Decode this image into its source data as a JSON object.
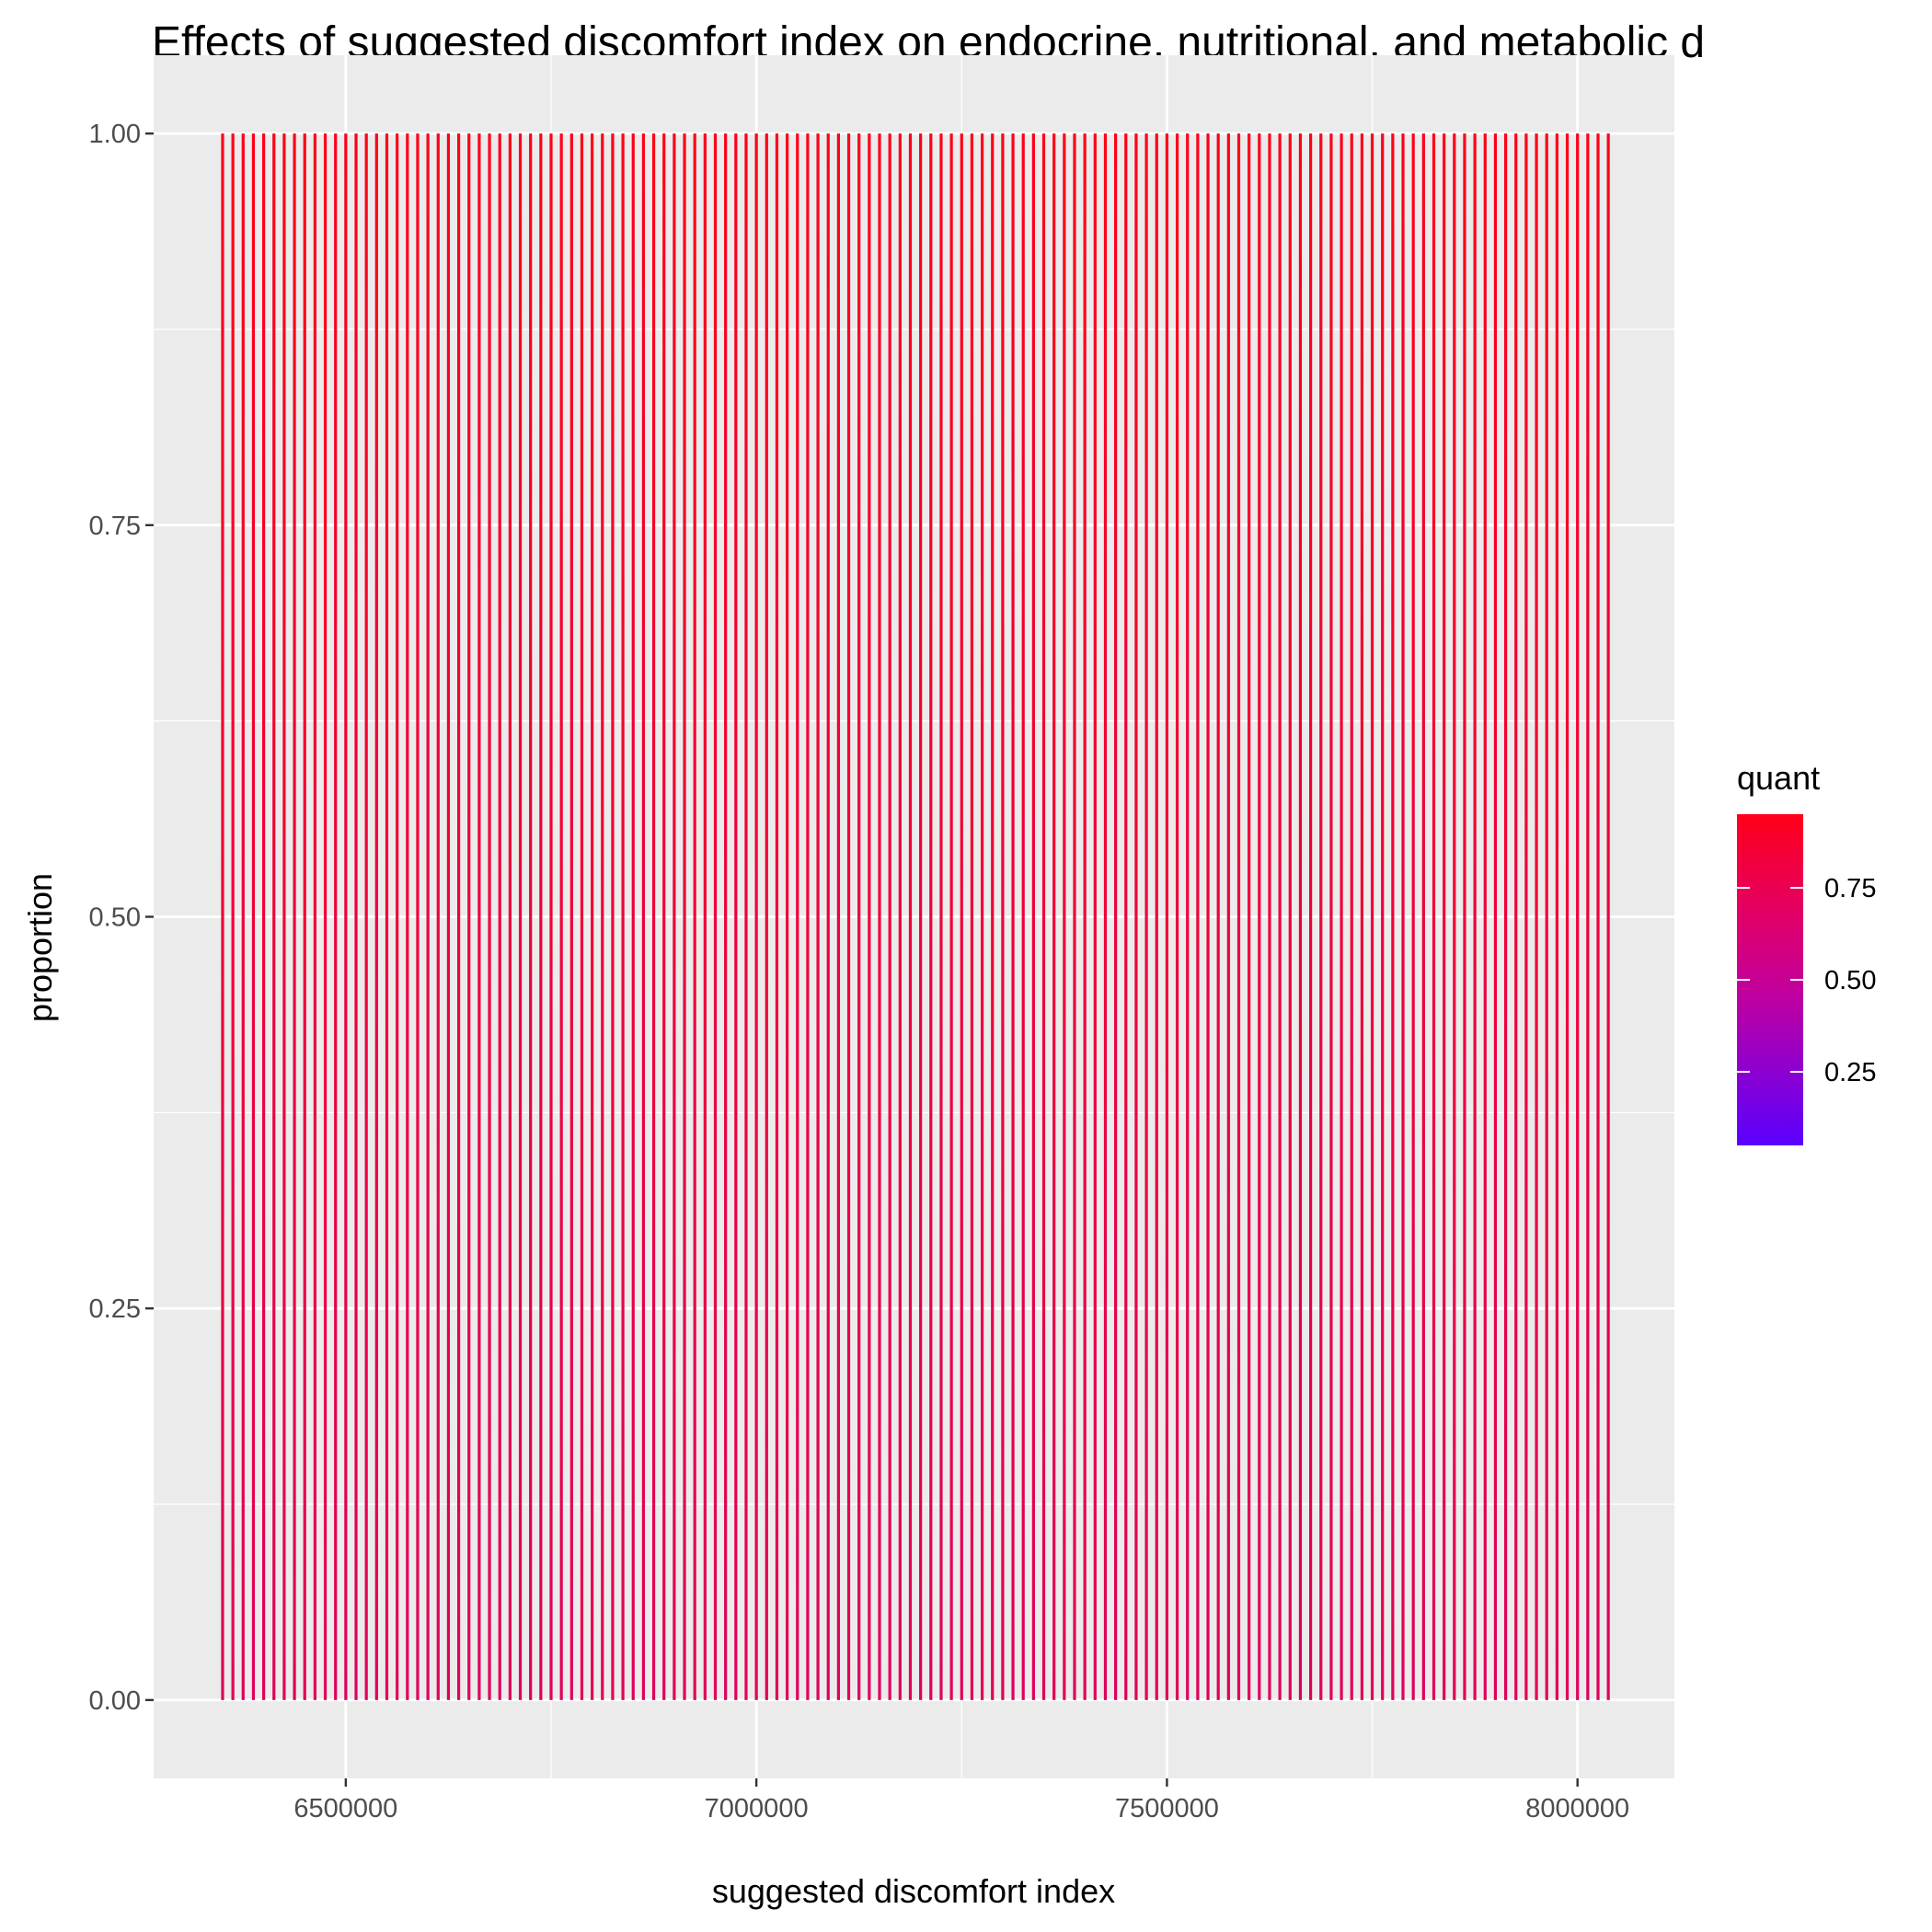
{
  "chart_data": {
    "type": "line",
    "title": "Effects of suggested discomfort index on endocrine, nutritional, and metabolic d",
    "xlabel": "suggested discomfort index",
    "ylabel": "proportion",
    "xlim": [
      6266000,
      8118000
    ],
    "ylim": [
      -0.05,
      1.05
    ],
    "x_ticks": [
      6500000,
      7000000,
      7500000,
      8000000
    ],
    "x_tick_labels": [
      "6500000",
      "7000000",
      "7500000",
      "8000000"
    ],
    "y_ticks": [
      0,
      0.25,
      0.5,
      0.75,
      1
    ],
    "y_tick_labels": [
      "0.00",
      "0.25",
      "0.50",
      "0.75",
      "1.00"
    ],
    "grid": true,
    "series_description": "vertical segments from proportion 0 to 1 at evenly spaced x values",
    "x_start": 6350000,
    "x_end": 8035000,
    "x_step": 12500,
    "y_from": 0,
    "y_to": 1,
    "line_color_top": "#ff0018",
    "line_color_bottom": "#e0005a",
    "legend": {
      "title": "quant",
      "position": "right",
      "breaks": [
        0.75,
        0.5,
        0.25
      ],
      "break_labels": [
        "0.75",
        "0.50",
        "0.25"
      ],
      "range": [
        0.05,
        0.95
      ],
      "color_low": "#5a00ff",
      "color_high": "#ff0018"
    },
    "panel_background": "#ebebeb",
    "grid_color": "#ffffff"
  }
}
